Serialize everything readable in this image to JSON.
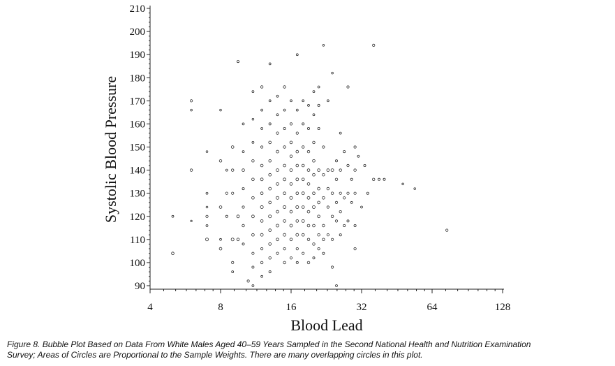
{
  "chart_data": {
    "type": "scatter",
    "xlabel": "Blood Lead",
    "ylabel": "Systolic Blood Pressure",
    "x_scale": "log2",
    "xlim": [
      4,
      128
    ],
    "ylim": [
      90,
      210
    ],
    "x_ticks": [
      "4",
      "8",
      "16",
      "32",
      "64",
      "128"
    ],
    "y_ticks": [
      "90",
      "100",
      "110",
      "120",
      "130",
      "140",
      "150",
      "160",
      "170",
      "180",
      "190",
      "200",
      "210"
    ],
    "grid": false,
    "bubble_encoding": "area proportional to sample weight",
    "points": [
      {
        "x": 5.0,
        "y": 104,
        "w": 1.0
      },
      {
        "x": 5.0,
        "y": 120,
        "w": 0.6
      },
      {
        "x": 6.0,
        "y": 140,
        "w": 0.9
      },
      {
        "x": 6.0,
        "y": 170,
        "w": 0.8
      },
      {
        "x": 6.0,
        "y": 166,
        "w": 0.5
      },
      {
        "x": 6.0,
        "y": 118,
        "w": 0.4
      },
      {
        "x": 7.0,
        "y": 148,
        "w": 0.5
      },
      {
        "x": 7.0,
        "y": 130,
        "w": 0.6
      },
      {
        "x": 7.0,
        "y": 120,
        "w": 0.8
      },
      {
        "x": 7.0,
        "y": 110,
        "w": 1.2
      },
      {
        "x": 7.0,
        "y": 116,
        "w": 0.6
      },
      {
        "x": 7.0,
        "y": 124,
        "w": 0.5
      },
      {
        "x": 8.0,
        "y": 166,
        "w": 0.5
      },
      {
        "x": 8.0,
        "y": 144,
        "w": 0.9
      },
      {
        "x": 8.0,
        "y": 124,
        "w": 1.0
      },
      {
        "x": 8.0,
        "y": 106,
        "w": 1.0
      },
      {
        "x": 8.0,
        "y": 110,
        "w": 0.6
      },
      {
        "x": 8.5,
        "y": 140,
        "w": 0.6
      },
      {
        "x": 8.5,
        "y": 130,
        "w": 0.8
      },
      {
        "x": 8.5,
        "y": 120,
        "w": 0.7
      },
      {
        "x": 9.0,
        "y": 150,
        "w": 1.0
      },
      {
        "x": 9.0,
        "y": 140,
        "w": 0.9
      },
      {
        "x": 9.0,
        "y": 130,
        "w": 0.8
      },
      {
        "x": 9.0,
        "y": 110,
        "w": 1.2
      },
      {
        "x": 9.0,
        "y": 100,
        "w": 0.8
      },
      {
        "x": 9.0,
        "y": 96,
        "w": 0.6
      },
      {
        "x": 9.5,
        "y": 187,
        "w": 0.7
      },
      {
        "x": 9.5,
        "y": 120,
        "w": 1.1
      },
      {
        "x": 9.5,
        "y": 110,
        "w": 1.0
      },
      {
        "x": 10.0,
        "y": 160,
        "w": 0.6
      },
      {
        "x": 10.0,
        "y": 148,
        "w": 0.6
      },
      {
        "x": 10.0,
        "y": 140,
        "w": 1.0
      },
      {
        "x": 10.0,
        "y": 132,
        "w": 0.7
      },
      {
        "x": 10.0,
        "y": 124,
        "w": 0.8
      },
      {
        "x": 10.0,
        "y": 116,
        "w": 0.9
      },
      {
        "x": 10.0,
        "y": 108,
        "w": 0.7
      },
      {
        "x": 10.5,
        "y": 92,
        "w": 0.8
      },
      {
        "x": 11.0,
        "y": 174,
        "w": 0.6
      },
      {
        "x": 11.0,
        "y": 162,
        "w": 0.5
      },
      {
        "x": 11.0,
        "y": 152,
        "w": 0.6
      },
      {
        "x": 11.0,
        "y": 144,
        "w": 0.9
      },
      {
        "x": 11.0,
        "y": 136,
        "w": 1.0
      },
      {
        "x": 11.0,
        "y": 128,
        "w": 1.0
      },
      {
        "x": 11.0,
        "y": 120,
        "w": 1.1
      },
      {
        "x": 11.0,
        "y": 112,
        "w": 1.0
      },
      {
        "x": 11.0,
        "y": 104,
        "w": 0.8
      },
      {
        "x": 11.0,
        "y": 98,
        "w": 0.7
      },
      {
        "x": 11.0,
        "y": 90,
        "w": 0.6
      },
      {
        "x": 12.0,
        "y": 176,
        "w": 0.9
      },
      {
        "x": 12.0,
        "y": 166,
        "w": 0.6
      },
      {
        "x": 12.0,
        "y": 158,
        "w": 0.6
      },
      {
        "x": 12.0,
        "y": 150,
        "w": 0.8
      },
      {
        "x": 12.0,
        "y": 142,
        "w": 1.0
      },
      {
        "x": 12.0,
        "y": 136,
        "w": 1.1
      },
      {
        "x": 12.0,
        "y": 130,
        "w": 1.0
      },
      {
        "x": 12.0,
        "y": 124,
        "w": 1.2
      },
      {
        "x": 12.0,
        "y": 118,
        "w": 1.0
      },
      {
        "x": 12.0,
        "y": 112,
        "w": 1.1
      },
      {
        "x": 12.0,
        "y": 106,
        "w": 0.8
      },
      {
        "x": 12.0,
        "y": 100,
        "w": 0.9
      },
      {
        "x": 12.0,
        "y": 94,
        "w": 0.6
      },
      {
        "x": 13.0,
        "y": 186,
        "w": 0.6
      },
      {
        "x": 13.0,
        "y": 170,
        "w": 0.6
      },
      {
        "x": 13.0,
        "y": 160,
        "w": 0.7
      },
      {
        "x": 13.0,
        "y": 152,
        "w": 1.0
      },
      {
        "x": 13.0,
        "y": 144,
        "w": 0.9
      },
      {
        "x": 13.0,
        "y": 138,
        "w": 1.0
      },
      {
        "x": 13.0,
        "y": 132,
        "w": 1.1
      },
      {
        "x": 13.0,
        "y": 126,
        "w": 1.0
      },
      {
        "x": 13.0,
        "y": 120,
        "w": 1.2
      },
      {
        "x": 13.0,
        "y": 114,
        "w": 1.0
      },
      {
        "x": 13.0,
        "y": 108,
        "w": 1.0
      },
      {
        "x": 13.0,
        "y": 102,
        "w": 0.9
      },
      {
        "x": 13.0,
        "y": 96,
        "w": 0.7
      },
      {
        "x": 14.0,
        "y": 172,
        "w": 0.6
      },
      {
        "x": 14.0,
        "y": 164,
        "w": 0.6
      },
      {
        "x": 14.0,
        "y": 156,
        "w": 0.8
      },
      {
        "x": 14.0,
        "y": 148,
        "w": 1.0
      },
      {
        "x": 14.0,
        "y": 140,
        "w": 1.1
      },
      {
        "x": 14.0,
        "y": 134,
        "w": 1.0
      },
      {
        "x": 14.0,
        "y": 128,
        "w": 1.2
      },
      {
        "x": 14.0,
        "y": 122,
        "w": 1.0
      },
      {
        "x": 14.0,
        "y": 116,
        "w": 1.1
      },
      {
        "x": 14.0,
        "y": 110,
        "w": 1.0
      },
      {
        "x": 14.0,
        "y": 104,
        "w": 0.8
      },
      {
        "x": 15.0,
        "y": 176,
        "w": 0.9
      },
      {
        "x": 15.0,
        "y": 166,
        "w": 0.6
      },
      {
        "x": 15.0,
        "y": 158,
        "w": 0.7
      },
      {
        "x": 15.0,
        "y": 150,
        "w": 0.9
      },
      {
        "x": 15.0,
        "y": 142,
        "w": 1.0
      },
      {
        "x": 15.0,
        "y": 136,
        "w": 1.1
      },
      {
        "x": 15.0,
        "y": 130,
        "w": 1.0
      },
      {
        "x": 15.0,
        "y": 124,
        "w": 1.2
      },
      {
        "x": 15.0,
        "y": 118,
        "w": 1.0
      },
      {
        "x": 15.0,
        "y": 112,
        "w": 1.1
      },
      {
        "x": 15.0,
        "y": 106,
        "w": 0.8
      },
      {
        "x": 15.0,
        "y": 100,
        "w": 0.9
      },
      {
        "x": 16.0,
        "y": 170,
        "w": 0.6
      },
      {
        "x": 16.0,
        "y": 160,
        "w": 0.8
      },
      {
        "x": 16.0,
        "y": 152,
        "w": 1.0
      },
      {
        "x": 16.0,
        "y": 146,
        "w": 0.9
      },
      {
        "x": 16.0,
        "y": 140,
        "w": 1.1
      },
      {
        "x": 16.0,
        "y": 134,
        "w": 1.0
      },
      {
        "x": 16.0,
        "y": 128,
        "w": 1.2
      },
      {
        "x": 16.0,
        "y": 122,
        "w": 1.0
      },
      {
        "x": 16.0,
        "y": 116,
        "w": 1.1
      },
      {
        "x": 16.0,
        "y": 110,
        "w": 1.0
      },
      {
        "x": 16.0,
        "y": 102,
        "w": 0.8
      },
      {
        "x": 17.0,
        "y": 190,
        "w": 0.6
      },
      {
        "x": 17.0,
        "y": 166,
        "w": 0.6
      },
      {
        "x": 17.0,
        "y": 156,
        "w": 0.8
      },
      {
        "x": 17.0,
        "y": 148,
        "w": 1.0
      },
      {
        "x": 17.0,
        "y": 142,
        "w": 1.0
      },
      {
        "x": 17.0,
        "y": 136,
        "w": 1.1
      },
      {
        "x": 17.0,
        "y": 130,
        "w": 1.0
      },
      {
        "x": 17.0,
        "y": 124,
        "w": 1.2
      },
      {
        "x": 17.0,
        "y": 118,
        "w": 1.0
      },
      {
        "x": 17.0,
        "y": 112,
        "w": 1.1
      },
      {
        "x": 17.0,
        "y": 106,
        "w": 0.8
      },
      {
        "x": 17.0,
        "y": 100,
        "w": 0.7
      },
      {
        "x": 18.0,
        "y": 170,
        "w": 0.6
      },
      {
        "x": 18.0,
        "y": 160,
        "w": 0.7
      },
      {
        "x": 18.0,
        "y": 150,
        "w": 0.9
      },
      {
        "x": 18.0,
        "y": 142,
        "w": 1.0
      },
      {
        "x": 18.0,
        "y": 136,
        "w": 1.0
      },
      {
        "x": 18.0,
        "y": 130,
        "w": 1.1
      },
      {
        "x": 18.0,
        "y": 124,
        "w": 1.0
      },
      {
        "x": 18.0,
        "y": 118,
        "w": 1.1
      },
      {
        "x": 18.0,
        "y": 112,
        "w": 1.0
      },
      {
        "x": 18.0,
        "y": 104,
        "w": 0.8
      },
      {
        "x": 19.0,
        "y": 168,
        "w": 0.6
      },
      {
        "x": 19.0,
        "y": 158,
        "w": 0.7
      },
      {
        "x": 19.0,
        "y": 148,
        "w": 0.9
      },
      {
        "x": 19.0,
        "y": 140,
        "w": 1.0
      },
      {
        "x": 19.0,
        "y": 134,
        "w": 1.0
      },
      {
        "x": 19.0,
        "y": 128,
        "w": 1.1
      },
      {
        "x": 19.0,
        "y": 122,
        "w": 1.0
      },
      {
        "x": 19.0,
        "y": 116,
        "w": 1.0
      },
      {
        "x": 19.0,
        "y": 110,
        "w": 0.9
      },
      {
        "x": 19.0,
        "y": 100,
        "w": 0.9
      },
      {
        "x": 20.0,
        "y": 174,
        "w": 0.6
      },
      {
        "x": 20.0,
        "y": 164,
        "w": 0.6
      },
      {
        "x": 20.0,
        "y": 152,
        "w": 0.9
      },
      {
        "x": 20.0,
        "y": 144,
        "w": 1.0
      },
      {
        "x": 20.0,
        "y": 138,
        "w": 1.0
      },
      {
        "x": 20.0,
        "y": 130,
        "w": 1.0
      },
      {
        "x": 20.0,
        "y": 124,
        "w": 1.1
      },
      {
        "x": 20.0,
        "y": 116,
        "w": 1.0
      },
      {
        "x": 20.0,
        "y": 108,
        "w": 0.9
      },
      {
        "x": 20.0,
        "y": 102,
        "w": 0.7
      },
      {
        "x": 21.0,
        "y": 176,
        "w": 0.6
      },
      {
        "x": 21.0,
        "y": 168,
        "w": 0.7
      },
      {
        "x": 21.0,
        "y": 158,
        "w": 0.7
      },
      {
        "x": 21.0,
        "y": 140,
        "w": 1.0
      },
      {
        "x": 21.0,
        "y": 132,
        "w": 1.0
      },
      {
        "x": 21.0,
        "y": 126,
        "w": 1.0
      },
      {
        "x": 21.0,
        "y": 120,
        "w": 1.0
      },
      {
        "x": 21.0,
        "y": 112,
        "w": 0.9
      },
      {
        "x": 21.0,
        "y": 106,
        "w": 0.8
      },
      {
        "x": 22.0,
        "y": 194,
        "w": 0.5
      },
      {
        "x": 22.0,
        "y": 150,
        "w": 0.8
      },
      {
        "x": 22.0,
        "y": 138,
        "w": 0.9
      },
      {
        "x": 22.0,
        "y": 128,
        "w": 1.0
      },
      {
        "x": 22.0,
        "y": 116,
        "w": 0.9
      },
      {
        "x": 22.0,
        "y": 110,
        "w": 0.9
      },
      {
        "x": 22.0,
        "y": 104,
        "w": 0.7
      },
      {
        "x": 23.0,
        "y": 170,
        "w": 0.6
      },
      {
        "x": 23.0,
        "y": 140,
        "w": 1.0
      },
      {
        "x": 23.0,
        "y": 132,
        "w": 0.9
      },
      {
        "x": 23.0,
        "y": 124,
        "w": 0.8
      },
      {
        "x": 23.0,
        "y": 112,
        "w": 0.8
      },
      {
        "x": 24.0,
        "y": 182,
        "w": 0.5
      },
      {
        "x": 24.0,
        "y": 140,
        "w": 1.1
      },
      {
        "x": 24.0,
        "y": 130,
        "w": 0.9
      },
      {
        "x": 24.0,
        "y": 120,
        "w": 0.9
      },
      {
        "x": 24.0,
        "y": 110,
        "w": 0.8
      },
      {
        "x": 24.0,
        "y": 98,
        "w": 0.8
      },
      {
        "x": 25.0,
        "y": 144,
        "w": 0.7
      },
      {
        "x": 25.0,
        "y": 136,
        "w": 0.9
      },
      {
        "x": 25.0,
        "y": 126,
        "w": 0.8
      },
      {
        "x": 25.0,
        "y": 118,
        "w": 0.8
      },
      {
        "x": 25.0,
        "y": 90,
        "w": 0.6
      },
      {
        "x": 26.0,
        "y": 156,
        "w": 0.6
      },
      {
        "x": 26.0,
        "y": 140,
        "w": 0.9
      },
      {
        "x": 26.0,
        "y": 130,
        "w": 0.8
      },
      {
        "x": 26.0,
        "y": 122,
        "w": 0.8
      },
      {
        "x": 26.0,
        "y": 112,
        "w": 0.7
      },
      {
        "x": 27.0,
        "y": 148,
        "w": 0.7
      },
      {
        "x": 27.0,
        "y": 128,
        "w": 0.8
      },
      {
        "x": 27.0,
        "y": 116,
        "w": 0.7
      },
      {
        "x": 28.0,
        "y": 176,
        "w": 0.8
      },
      {
        "x": 28.0,
        "y": 142,
        "w": 0.8
      },
      {
        "x": 28.0,
        "y": 130,
        "w": 0.8
      },
      {
        "x": 28.0,
        "y": 118,
        "w": 0.7
      },
      {
        "x": 29.0,
        "y": 136,
        "w": 0.7
      },
      {
        "x": 29.0,
        "y": 126,
        "w": 0.6
      },
      {
        "x": 30.0,
        "y": 150,
        "w": 0.8
      },
      {
        "x": 30.0,
        "y": 140,
        "w": 0.9
      },
      {
        "x": 30.0,
        "y": 130,
        "w": 0.8
      },
      {
        "x": 30.0,
        "y": 116,
        "w": 0.7
      },
      {
        "x": 30.0,
        "y": 106,
        "w": 0.8
      },
      {
        "x": 31.0,
        "y": 146,
        "w": 0.6
      },
      {
        "x": 32.0,
        "y": 124,
        "w": 0.6
      },
      {
        "x": 33.0,
        "y": 142,
        "w": 0.7
      },
      {
        "x": 34.0,
        "y": 130,
        "w": 0.7
      },
      {
        "x": 36.0,
        "y": 194,
        "w": 0.8
      },
      {
        "x": 36.0,
        "y": 136,
        "w": 0.9
      },
      {
        "x": 38.0,
        "y": 136,
        "w": 0.7
      },
      {
        "x": 40.0,
        "y": 136,
        "w": 0.7
      },
      {
        "x": 48.0,
        "y": 134,
        "w": 0.5
      },
      {
        "x": 54.0,
        "y": 132,
        "w": 0.5
      },
      {
        "x": 74.0,
        "y": 114,
        "w": 0.8
      }
    ]
  },
  "caption": {
    "line1": "Figure 8.  Bubble Plot Based on Data From White Males Aged 40–59 Years Sampled in the Second National Health and Nutrition Examination",
    "line2": "Survey; Areas of Circles are Proportional to the Sample Weights. There are many overlapping circles in this plot."
  },
  "colors": {
    "ink": "#222222",
    "bubble": "#333333",
    "background": "#ffffff"
  }
}
